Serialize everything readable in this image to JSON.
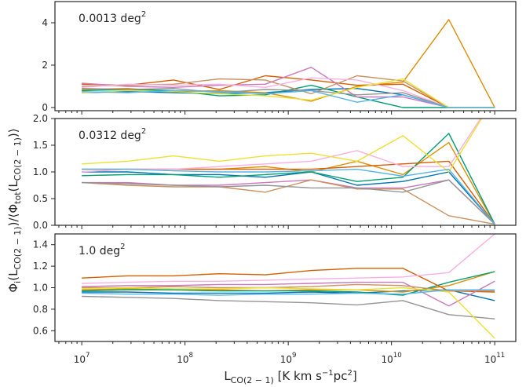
{
  "chart_data": {
    "type": "line",
    "xlabel": "L_{CO(2-1)} [K km s^{-1} pc^{2}]",
    "ylabel": "Φ_i(L_{CO(2-1)})/⟨Φ_tot(L_{CO(2-1)})⟩",
    "x_scale": "log",
    "x": [
      10000000.0,
      27800000.0,
      77400000.0,
      215000000.0,
      599000000.0,
      1670000000.0,
      4640000000.0,
      12900000000.0,
      35900000000.0,
      100000000000.0
    ],
    "xlim": [
      5500000.0,
      160000000000.0
    ],
    "x_ticks": [
      "10^7",
      "10^8",
      "10^9",
      "10^10",
      "10^11"
    ],
    "panels": [
      {
        "label": "0.0013 deg^2",
        "ylim": [
          -0.15,
          5.0
        ],
        "y_ticks": [
          "0",
          "2",
          "4"
        ],
        "series": [
          {
            "color": "#0173b2",
            "values": [
              0.7,
              0.75,
              0.7,
              0.65,
              0.7,
              0.85,
              0.9,
              0.6,
              0,
              0
            ]
          },
          {
            "color": "#de8f05",
            "values": [
              0.85,
              0.9,
              0.75,
              0.8,
              0.7,
              0.3,
              1.0,
              1.2,
              4.15,
              0
            ]
          },
          {
            "color": "#029e73",
            "values": [
              0.8,
              0.85,
              0.8,
              0.55,
              0.6,
              1.05,
              0.5,
              0,
              0,
              0
            ]
          },
          {
            "color": "#d55e00",
            "values": [
              1.1,
              1.05,
              1.3,
              0.85,
              1.5,
              1.3,
              1.05,
              1.1,
              0,
              0
            ]
          },
          {
            "color": "#cc78bc",
            "values": [
              1.15,
              1.0,
              0.95,
              1.05,
              1.1,
              1.9,
              0.5,
              0.5,
              0,
              0
            ]
          },
          {
            "color": "#ca9161",
            "values": [
              1.0,
              1.05,
              1.1,
              1.35,
              1.3,
              0.65,
              1.5,
              1.25,
              0,
              0
            ]
          },
          {
            "color": "#fbafe4",
            "values": [
              0.95,
              1.1,
              1.05,
              1.1,
              0.95,
              1.4,
              1.3,
              0.8,
              0,
              0
            ]
          },
          {
            "color": "#949494",
            "values": [
              0.9,
              0.85,
              0.9,
              0.7,
              0.85,
              0.8,
              0.6,
              0.7,
              0,
              0
            ]
          },
          {
            "color": "#ece133",
            "values": [
              0.7,
              0.8,
              0.75,
              0.65,
              0.55,
              0.35,
              0.95,
              1.35,
              0,
              0
            ]
          },
          {
            "color": "#56b4e9",
            "values": [
              0.75,
              0.7,
              0.8,
              0.75,
              0.65,
              0.8,
              0.25,
              0.6,
              0,
              0
            ]
          }
        ]
      },
      {
        "label": "0.0312 deg^2",
        "ylim": [
          0.0,
          2.0
        ],
        "y_ticks": [
          "0.0",
          "0.5",
          "1.0",
          "1.5",
          "2.0"
        ],
        "series": [
          {
            "color": "#0173b2",
            "values": [
              1.0,
              1.0,
              0.95,
              0.95,
              0.9,
              1.0,
              0.75,
              0.82,
              1.0,
              0.02
            ]
          },
          {
            "color": "#de8f05",
            "values": [
              1.05,
              1.05,
              1.05,
              1.05,
              1.1,
              1.0,
              1.2,
              0.95,
              1.55,
              0.02
            ]
          },
          {
            "color": "#029e73",
            "values": [
              0.93,
              0.95,
              0.95,
              0.9,
              0.95,
              1.0,
              0.82,
              0.9,
              1.72,
              0.02
            ]
          },
          {
            "color": "#d55e00",
            "values": [
              1.05,
              1.05,
              1.05,
              1.05,
              1.05,
              1.05,
              1.1,
              1.15,
              1.2,
              0.02
            ]
          },
          {
            "color": "#cc78bc",
            "values": [
              0.8,
              0.8,
              0.75,
              0.75,
              0.8,
              0.85,
              0.7,
              0.7,
              0.85,
              0.02
            ]
          },
          {
            "color": "#ca9161",
            "values": [
              0.8,
              0.75,
              0.72,
              0.72,
              0.62,
              0.85,
              0.68,
              0.68,
              0.18,
              0.02
            ]
          },
          {
            "color": "#fbafe4",
            "values": [
              1.0,
              1.05,
              1.05,
              1.1,
              1.15,
              1.2,
              1.4,
              1.1,
              1.1,
              2.4
            ]
          },
          {
            "color": "#949494",
            "values": [
              0.8,
              0.78,
              0.75,
              0.72,
              0.75,
              0.7,
              0.7,
              0.62,
              0.85,
              0.02
            ]
          },
          {
            "color": "#ece133",
            "values": [
              1.15,
              1.2,
              1.3,
              1.2,
              1.3,
              1.35,
              1.2,
              1.68,
              1.0,
              2.4
            ]
          },
          {
            "color": "#56b4e9",
            "values": [
              1.05,
              1.05,
              1.02,
              1.0,
              1.0,
              1.02,
              1.05,
              0.92,
              1.05,
              0.02
            ]
          }
        ]
      },
      {
        "label": "1.0 deg^2",
        "ylim": [
          0.5,
          1.5
        ],
        "y_ticks": [
          "0.6",
          "0.8",
          "1.0",
          "1.2",
          "1.4"
        ],
        "series": [
          {
            "color": "#0173b2",
            "values": [
              0.96,
              0.96,
              0.95,
              0.95,
              0.95,
              0.96,
              0.95,
              0.97,
              0.98,
              0.88
            ]
          },
          {
            "color": "#de8f05",
            "values": [
              0.98,
              0.99,
              0.98,
              0.98,
              0.97,
              0.98,
              0.98,
              0.96,
              1.02,
              1.15
            ]
          },
          {
            "color": "#029e73",
            "values": [
              0.97,
              0.98,
              0.98,
              0.97,
              0.97,
              0.97,
              0.96,
              0.93,
              1.05,
              1.15
            ]
          },
          {
            "color": "#d55e00",
            "values": [
              1.09,
              1.11,
              1.11,
              1.13,
              1.12,
              1.16,
              1.18,
              1.18,
              0.97,
              0.96
            ]
          },
          {
            "color": "#cc78bc",
            "values": [
              1.01,
              1.02,
              1.02,
              1.03,
              1.03,
              1.04,
              1.05,
              1.05,
              0.83,
              1.06
            ]
          },
          {
            "color": "#ca9161",
            "values": [
              1.0,
              1.0,
              1.01,
              1.0,
              1.0,
              1.01,
              1.03,
              1.02,
              0.97,
              0.97
            ]
          },
          {
            "color": "#fbafe4",
            "values": [
              1.04,
              1.05,
              1.06,
              1.06,
              1.07,
              1.08,
              1.09,
              1.1,
              1.14,
              1.5
            ]
          },
          {
            "color": "#949494",
            "values": [
              0.92,
              0.91,
              0.9,
              0.88,
              0.87,
              0.86,
              0.84,
              0.88,
              0.75,
              0.71
            ]
          },
          {
            "color": "#ece133",
            "values": [
              0.99,
              1.0,
              0.99,
              0.99,
              1.0,
              0.99,
              0.98,
              1.0,
              0.96,
              0.53
            ]
          },
          {
            "color": "#56b4e9",
            "values": [
              0.95,
              0.94,
              0.94,
              0.93,
              0.94,
              0.94,
              0.95,
              0.94,
              0.98,
              0.98
            ]
          }
        ]
      }
    ],
    "grid": false,
    "legend": "none"
  }
}
